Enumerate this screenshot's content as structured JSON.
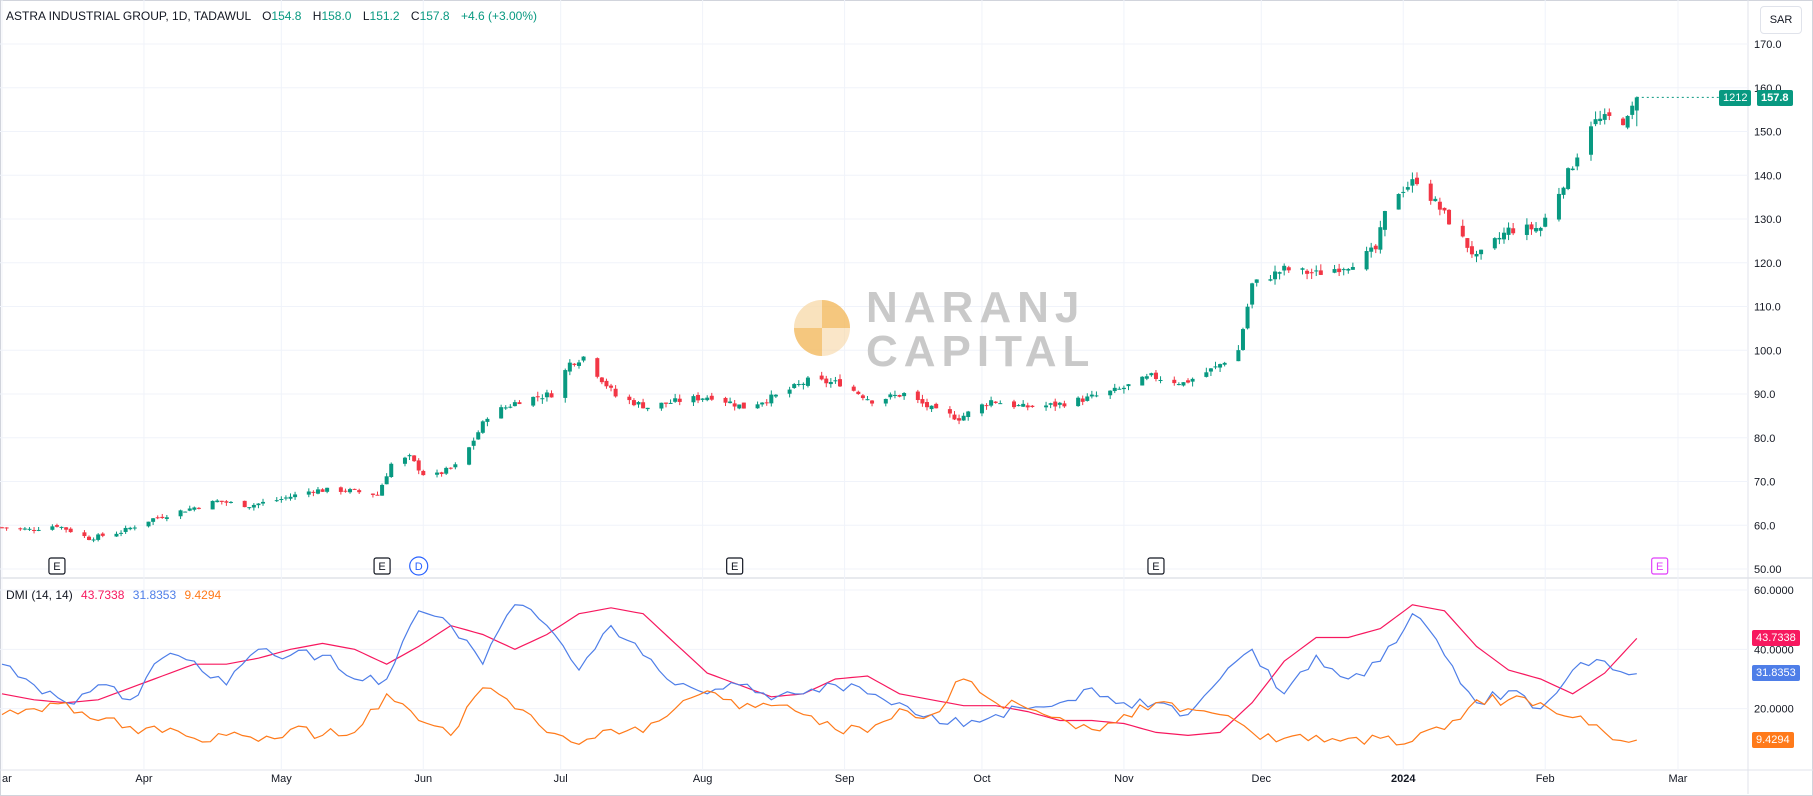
{
  "header": {
    "symbol_line": "ASTRA INDUSTRIAL GROUP, 1D, TADAWUL",
    "open_label": "O",
    "open": "154.8",
    "high_label": "H",
    "high": "158.0",
    "low_label": "L",
    "low": "151.2",
    "close_label": "C",
    "close": "157.8",
    "change": "+4.6 (+3.00%)"
  },
  "currency": "SAR",
  "price_tag": {
    "count": "1212",
    "price": "157.8"
  },
  "watermark": {
    "line1": "NARANJ",
    "line2": "CAPITAL"
  },
  "events": [
    {
      "label": "E",
      "date": "2023-03-13",
      "kind": "earnings"
    },
    {
      "label": "E",
      "date": "2023-05-23",
      "kind": "earnings"
    },
    {
      "label": "D",
      "date": "2023-05-31",
      "kind": "dividend"
    },
    {
      "label": "E",
      "date": "2023-08-08",
      "kind": "earnings"
    },
    {
      "label": "E",
      "date": "2023-11-08",
      "kind": "earnings"
    },
    {
      "label": "E",
      "date": "2024-02-26",
      "kind": "earnings-upcoming"
    }
  ],
  "dmi": {
    "title": "DMI (14, 14)",
    "adx_value": "43.7338",
    "plus_di_value": "31.8353",
    "minus_di_value": "9.4294"
  },
  "colors": {
    "up": "#089981",
    "down": "#f23645",
    "adx": "#f7185f",
    "plus_di": "#4e7ee8",
    "minus_di": "#ff7a1a",
    "grid": "#f0f3fa",
    "event_future": "#e040fb",
    "dividend": "#2962ff"
  },
  "chart_data": [
    {
      "type": "candlestick",
      "title": "ASTRA INDUSTRIAL GROUP, 1D, TADAWUL",
      "ylim": [
        50,
        170
      ],
      "y_ticks": [
        50,
        60,
        70,
        80,
        90,
        100,
        110,
        120,
        130,
        140,
        150,
        160,
        170
      ],
      "y_tick_labels": [
        "50.00",
        "60.0",
        "70.0",
        "80.0",
        "90.0",
        "100.0",
        "110.0",
        "120.0",
        "130.0",
        "140.0",
        "150.0",
        "160.0",
        "170.0"
      ],
      "x_tick_labels": [
        {
          "date": "2023-03-01",
          "label": "ar"
        },
        {
          "date": "2023-04-01",
          "label": "Apr"
        },
        {
          "date": "2023-05-01",
          "label": "May"
        },
        {
          "date": "2023-06-01",
          "label": "Jun"
        },
        {
          "date": "2023-07-01",
          "label": "Jul"
        },
        {
          "date": "2023-08-01",
          "label": "Aug"
        },
        {
          "date": "2023-09-01",
          "label": "Sep"
        },
        {
          "date": "2023-10-01",
          "label": "Oct"
        },
        {
          "date": "2023-11-01",
          "label": "Nov"
        },
        {
          "date": "2023-12-01",
          "label": "Dec"
        },
        {
          "date": "2024-01-01",
          "label": "2024"
        },
        {
          "date": "2024-02-01",
          "label": "Feb"
        },
        {
          "date": "2024-03-01",
          "label": "Mar"
        }
      ],
      "close_path": [
        [
          "2023-03-01",
          59.5
        ],
        [
          "2023-03-07",
          59.0
        ],
        [
          "2023-03-13",
          60.0
        ],
        [
          "2023-03-20",
          57.0
        ],
        [
          "2023-03-27",
          58.5
        ],
        [
          "2023-04-03",
          61.5
        ],
        [
          "2023-04-10",
          63.5
        ],
        [
          "2023-04-17",
          65.5
        ],
        [
          "2023-04-24",
          64.5
        ],
        [
          "2023-05-01",
          66.0
        ],
        [
          "2023-05-08",
          68.0
        ],
        [
          "2023-05-15",
          68.0
        ],
        [
          "2023-05-22",
          67.0
        ],
        [
          "2023-05-25",
          74.0
        ],
        [
          "2023-05-29",
          75.5
        ],
        [
          "2023-06-02",
          70.5
        ],
        [
          "2023-06-09",
          74.0
        ],
        [
          "2023-06-15",
          85.0
        ],
        [
          "2023-06-22",
          88.5
        ],
        [
          "2023-06-29",
          90.0
        ],
        [
          "2023-07-03",
          97.0
        ],
        [
          "2023-07-06",
          98.5
        ],
        [
          "2023-07-13",
          89.5
        ],
        [
          "2023-07-20",
          87.0
        ],
        [
          "2023-07-27",
          88.5
        ],
        [
          "2023-08-03",
          89.5
        ],
        [
          "2023-08-10",
          87.0
        ],
        [
          "2023-08-17",
          89.5
        ],
        [
          "2023-08-24",
          93.0
        ],
        [
          "2023-08-31",
          92.5
        ],
        [
          "2023-09-07",
          88.5
        ],
        [
          "2023-09-14",
          90.0
        ],
        [
          "2023-09-21",
          86.0
        ],
        [
          "2023-09-26",
          84.5
        ],
        [
          "2023-10-03",
          88.5
        ],
        [
          "2023-10-10",
          87.0
        ],
        [
          "2023-10-17",
          87.5
        ],
        [
          "2023-10-24",
          89.0
        ],
        [
          "2023-10-31",
          91.0
        ],
        [
          "2023-11-07",
          94.0
        ],
        [
          "2023-11-14",
          92.5
        ],
        [
          "2023-11-21",
          96.0
        ],
        [
          "2023-11-26",
          100.0
        ],
        [
          "2023-11-29",
          115.0
        ],
        [
          "2023-12-06",
          118.5
        ],
        [
          "2023-12-13",
          117.5
        ],
        [
          "2023-12-20",
          119.5
        ],
        [
          "2023-12-26",
          123.0
        ],
        [
          "2023-12-29",
          135.0
        ],
        [
          "2024-01-04",
          139.0
        ],
        [
          "2024-01-10",
          131.0
        ],
        [
          "2024-01-17",
          121.0
        ],
        [
          "2024-01-24",
          127.5
        ],
        [
          "2024-01-31",
          128.0
        ],
        [
          "2024-02-07",
          142.5
        ],
        [
          "2024-02-11",
          152.0
        ],
        [
          "2024-02-15",
          153.0
        ],
        [
          "2024-02-19",
          152.5
        ],
        [
          "2024-02-21",
          157.8
        ]
      ]
    },
    {
      "type": "line",
      "title": "DMI (14, 14)",
      "ylim": [
        0,
        60
      ],
      "y_ticks": [
        20,
        40,
        60
      ],
      "y_tick_labels": [
        "20.0000",
        "40.0000",
        "60.0000"
      ],
      "series": [
        {
          "name": "ADX",
          "last": 43.7338,
          "points": [
            [
              "2023-03-01",
              25
            ],
            [
              "2023-03-08",
              23
            ],
            [
              "2023-03-15",
              22
            ],
            [
              "2023-03-22",
              23
            ],
            [
              "2023-03-29",
              27
            ],
            [
              "2023-04-05",
              31
            ],
            [
              "2023-04-12",
              35
            ],
            [
              "2023-04-19",
              35
            ],
            [
              "2023-04-26",
              37
            ],
            [
              "2023-05-03",
              40
            ],
            [
              "2023-05-10",
              42
            ],
            [
              "2023-05-17",
              40
            ],
            [
              "2023-05-24",
              35
            ],
            [
              "2023-05-31",
              41
            ],
            [
              "2023-06-07",
              48
            ],
            [
              "2023-06-14",
              45
            ],
            [
              "2023-06-21",
              40
            ],
            [
              "2023-06-28",
              45
            ],
            [
              "2023-07-05",
              52
            ],
            [
              "2023-07-12",
              54
            ],
            [
              "2023-07-19",
              52
            ],
            [
              "2023-07-26",
              42
            ],
            [
              "2023-08-02",
              32
            ],
            [
              "2023-08-09",
              28
            ],
            [
              "2023-08-16",
              24
            ],
            [
              "2023-08-23",
              25
            ],
            [
              "2023-08-30",
              30
            ],
            [
              "2023-09-06",
              31
            ],
            [
              "2023-09-13",
              25
            ],
            [
              "2023-09-20",
              23
            ],
            [
              "2023-09-27",
              21
            ],
            [
              "2023-10-04",
              21
            ],
            [
              "2023-10-11",
              19
            ],
            [
              "2023-10-18",
              16
            ],
            [
              "2023-10-25",
              16
            ],
            [
              "2023-11-01",
              15
            ],
            [
              "2023-11-08",
              12
            ],
            [
              "2023-11-15",
              11
            ],
            [
              "2023-11-22",
              12
            ],
            [
              "2023-11-29",
              22
            ],
            [
              "2023-12-06",
              36
            ],
            [
              "2023-12-13",
              44
            ],
            [
              "2023-12-20",
              44
            ],
            [
              "2023-12-27",
              47
            ],
            [
              "2024-01-03",
              55
            ],
            [
              "2024-01-10",
              53
            ],
            [
              "2024-01-17",
              41
            ],
            [
              "2024-01-24",
              33
            ],
            [
              "2024-01-31",
              30
            ],
            [
              "2024-02-07",
              25
            ],
            [
              "2024-02-14",
              32
            ],
            [
              "2024-02-21",
              43.7
            ]
          ]
        },
        {
          "name": "+DI",
          "last": 31.8353,
          "points": [
            [
              "2023-03-01",
              35
            ],
            [
              "2023-03-08",
              28
            ],
            [
              "2023-03-15",
              22
            ],
            [
              "2023-03-22",
              28
            ],
            [
              "2023-03-29",
              23
            ],
            [
              "2023-04-05",
              37
            ],
            [
              "2023-04-12",
              36
            ],
            [
              "2023-04-19",
              28
            ],
            [
              "2023-04-26",
              40
            ],
            [
              "2023-05-03",
              38
            ],
            [
              "2023-05-10",
              38
            ],
            [
              "2023-05-17",
              30
            ],
            [
              "2023-05-24",
              30
            ],
            [
              "2023-05-31",
              53
            ],
            [
              "2023-06-07",
              48
            ],
            [
              "2023-06-14",
              35
            ],
            [
              "2023-06-21",
              55
            ],
            [
              "2023-06-28",
              48
            ],
            [
              "2023-07-05",
              33
            ],
            [
              "2023-07-12",
              48
            ],
            [
              "2023-07-19",
              38
            ],
            [
              "2023-07-26",
              28
            ],
            [
              "2023-08-02",
              25
            ],
            [
              "2023-08-09",
              28
            ],
            [
              "2023-08-16",
              23
            ],
            [
              "2023-08-23",
              25
            ],
            [
              "2023-08-30",
              28
            ],
            [
              "2023-09-06",
              25
            ],
            [
              "2023-09-13",
              22
            ],
            [
              "2023-09-20",
              18
            ],
            [
              "2023-09-27",
              14
            ],
            [
              "2023-10-04",
              18
            ],
            [
              "2023-10-11",
              20
            ],
            [
              "2023-10-18",
              22
            ],
            [
              "2023-10-25",
              27
            ],
            [
              "2023-11-01",
              22
            ],
            [
              "2023-11-08",
              22
            ],
            [
              "2023-11-15",
              18
            ],
            [
              "2023-11-22",
              30
            ],
            [
              "2023-11-29",
              40
            ],
            [
              "2023-12-06",
              25
            ],
            [
              "2023-12-13",
              38
            ],
            [
              "2023-12-20",
              30
            ],
            [
              "2023-12-27",
              36
            ],
            [
              "2024-01-03",
              52
            ],
            [
              "2024-01-10",
              38
            ],
            [
              "2024-01-17",
              22
            ],
            [
              "2024-01-24",
              26
            ],
            [
              "2024-01-31",
              20
            ],
            [
              "2024-02-07",
              33
            ],
            [
              "2024-02-14",
              36
            ],
            [
              "2024-02-21",
              31.8
            ]
          ]
        },
        {
          "name": "-DI",
          "last": 9.4294,
          "points": [
            [
              "2023-03-01",
              18
            ],
            [
              "2023-03-08",
              20
            ],
            [
              "2023-03-15",
              22
            ],
            [
              "2023-03-22",
              16
            ],
            [
              "2023-03-29",
              14
            ],
            [
              "2023-04-05",
              12
            ],
            [
              "2023-04-12",
              10
            ],
            [
              "2023-04-19",
              11
            ],
            [
              "2023-04-26",
              9
            ],
            [
              "2023-05-03",
              13
            ],
            [
              "2023-05-10",
              11
            ],
            [
              "2023-05-17",
              12
            ],
            [
              "2023-05-24",
              25
            ],
            [
              "2023-05-31",
              16
            ],
            [
              "2023-06-07",
              11
            ],
            [
              "2023-06-14",
              27
            ],
            [
              "2023-06-21",
              20
            ],
            [
              "2023-06-28",
              12
            ],
            [
              "2023-07-05",
              8
            ],
            [
              "2023-07-12",
              13
            ],
            [
              "2023-07-19",
              12
            ],
            [
              "2023-07-26",
              20
            ],
            [
              "2023-08-02",
              26
            ],
            [
              "2023-08-09",
              20
            ],
            [
              "2023-08-16",
              21
            ],
            [
              "2023-08-23",
              18
            ],
            [
              "2023-08-30",
              13
            ],
            [
              "2023-09-06",
              12
            ],
            [
              "2023-09-13",
              20
            ],
            [
              "2023-09-20",
              18
            ],
            [
              "2023-09-27",
              30
            ],
            [
              "2023-10-04",
              22
            ],
            [
              "2023-10-11",
              20
            ],
            [
              "2023-10-18",
              17
            ],
            [
              "2023-10-25",
              13
            ],
            [
              "2023-11-01",
              18
            ],
            [
              "2023-11-08",
              22
            ],
            [
              "2023-11-15",
              20
            ],
            [
              "2023-11-22",
              18
            ],
            [
              "2023-11-29",
              12
            ],
            [
              "2023-12-06",
              10
            ],
            [
              "2023-12-13",
              11
            ],
            [
              "2023-12-20",
              10
            ],
            [
              "2023-12-27",
              10
            ],
            [
              "2024-01-03",
              9
            ],
            [
              "2024-01-10",
              13
            ],
            [
              "2024-01-17",
              23
            ],
            [
              "2024-01-24",
              23
            ],
            [
              "2024-01-31",
              22
            ],
            [
              "2024-02-07",
              17
            ],
            [
              "2024-02-14",
              12
            ],
            [
              "2024-02-21",
              9.4
            ]
          ]
        }
      ]
    }
  ]
}
